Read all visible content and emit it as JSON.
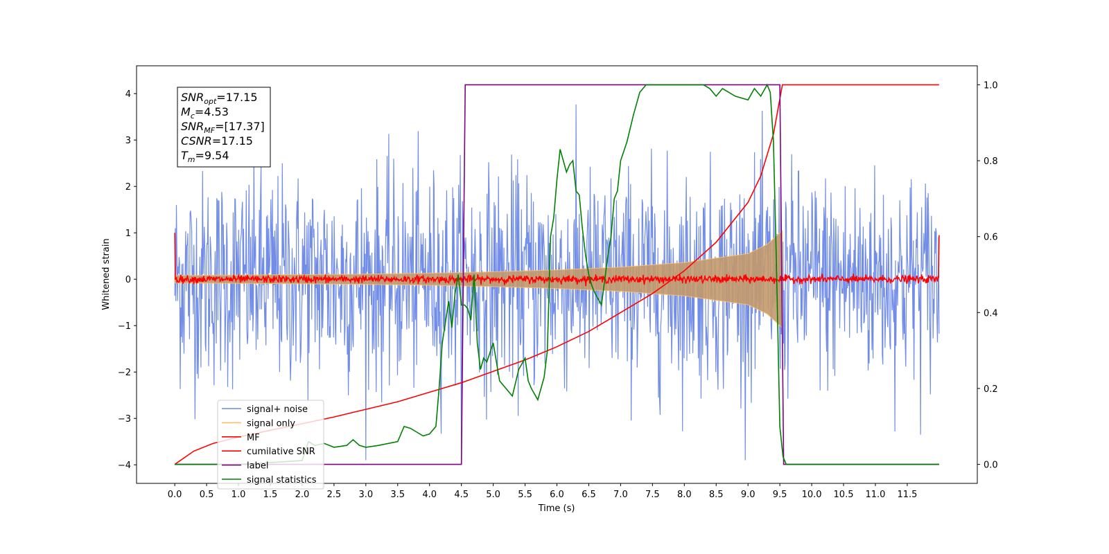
{
  "chart_data": {
    "type": "line",
    "xlabel": "Time (s)",
    "ylabel": "Whitened strain",
    "xlim": [
      -0.6,
      12.6
    ],
    "ylim": [
      -4.4,
      4.6
    ],
    "ylim_right": [
      -0.05,
      1.05
    ],
    "x_ticks": [
      "0.0",
      "0.5",
      "1.0",
      "1.5",
      "2.0",
      "2.5",
      "3.0",
      "3.5",
      "4.0",
      "4.5",
      "5.0",
      "5.5",
      "6.0",
      "6.5",
      "7.0",
      "7.5",
      "8.0",
      "8.5",
      "9.0",
      "9.5",
      "10.0",
      "10.5",
      "11.0",
      "11.5"
    ],
    "x_tick_values": [
      0,
      0.5,
      1,
      1.5,
      2,
      2.5,
      3,
      3.5,
      4,
      4.5,
      5,
      5.5,
      6,
      6.5,
      7,
      7.5,
      8,
      8.5,
      9,
      9.5,
      10,
      10.5,
      11,
      11.5
    ],
    "y_ticks": [
      "−4",
      "−3",
      "−2",
      "−1",
      "0",
      "1",
      "2",
      "3",
      "4"
    ],
    "y_tick_values": [
      -4,
      -3,
      -2,
      -1,
      0,
      1,
      2,
      3,
      4
    ],
    "y_right_ticks": [
      "0.0",
      "0.2",
      "0.4",
      "0.6",
      "0.8",
      "1.0"
    ],
    "y_right_tick_values": [
      0,
      0.2,
      0.4,
      0.6,
      0.8,
      1.0
    ],
    "grid": false,
    "legend_position": "lower-left",
    "annotation": {
      "lines": [
        {
          "base": "SNR",
          "sub": "opt",
          "rest": "=17.15"
        },
        {
          "base": "M",
          "sub": "c",
          "rest": "=4.53"
        },
        {
          "base": "SNR",
          "sub": "MF",
          "rest": "=[17.37]"
        },
        {
          "base": "CSNR",
          "sub": "",
          "rest": "=17.15"
        },
        {
          "base": "T",
          "sub": "m",
          "rest": "=9.54"
        }
      ]
    },
    "series": [
      {
        "name": "signal+ noise",
        "color": "#6a87e6",
        "axis": "left",
        "noise_std": 1.0,
        "x_range": [
          0,
          12
        ],
        "n_points": 1400
      },
      {
        "name": "signal only",
        "color": "#ffbf66",
        "axis": "left",
        "envelope": {
          "x": [
            0,
            1,
            2,
            3,
            4,
            5,
            6,
            7,
            8,
            9,
            9.3,
            9.54
          ],
          "amp": [
            0.08,
            0.09,
            0.1,
            0.11,
            0.13,
            0.16,
            0.2,
            0.26,
            0.36,
            0.55,
            0.75,
            1.05
          ]
        }
      },
      {
        "name": "MF",
        "color": "#ff0000",
        "axis": "left",
        "noise_std": 0.04,
        "x_range": [
          0,
          12
        ],
        "start_value": 1.0,
        "end_value": 0.95
      },
      {
        "name": "cumilative SNR",
        "color": "#ff0000",
        "axis": "right",
        "x": [
          0,
          0.3,
          0.6,
          1,
          1.5,
          2,
          2.5,
          3,
          3.5,
          4,
          4.5,
          5,
          5.5,
          6,
          6.5,
          7,
          7.5,
          8,
          8.5,
          9,
          9.2,
          9.4,
          9.54,
          9.55,
          12
        ],
        "y": [
          0.0,
          0.035,
          0.055,
          0.072,
          0.09,
          0.107,
          0.125,
          0.145,
          0.165,
          0.19,
          0.215,
          0.245,
          0.275,
          0.31,
          0.35,
          0.4,
          0.45,
          0.51,
          0.585,
          0.69,
          0.76,
          0.87,
          1.0,
          1.0,
          1.0
        ]
      },
      {
        "name": "label",
        "color": "#800080",
        "axis": "right",
        "x": [
          0,
          4.5,
          4.56,
          9.5,
          9.56,
          12
        ],
        "y": [
          0,
          0,
          1,
          1,
          0,
          0
        ]
      },
      {
        "name": "signal statistics",
        "color": "#008000",
        "axis": "right",
        "x": [
          0,
          0.5,
          1,
          1.5,
          2,
          2.1,
          2.2,
          2.35,
          2.5,
          2.7,
          2.8,
          2.9,
          3.0,
          3.2,
          3.5,
          3.6,
          3.7,
          3.8,
          3.9,
          4.0,
          4.1,
          4.15,
          4.2,
          4.3,
          4.35,
          4.4,
          4.45,
          4.5,
          4.55,
          4.6,
          4.65,
          4.7,
          4.75,
          4.8,
          4.85,
          4.9,
          5.0,
          5.1,
          5.2,
          5.3,
          5.4,
          5.5,
          5.55,
          5.6,
          5.7,
          5.8,
          5.85,
          5.9,
          5.95,
          6.0,
          6.05,
          6.1,
          6.15,
          6.2,
          6.25,
          6.3,
          6.35,
          6.4,
          6.45,
          6.5,
          6.55,
          6.6,
          6.7,
          6.8,
          6.85,
          6.9,
          6.95,
          7.0,
          7.1,
          7.2,
          7.3,
          7.4,
          7.5,
          7.6,
          7.7,
          8.0,
          8.2,
          8.3,
          8.4,
          8.5,
          8.6,
          8.7,
          8.8,
          9.0,
          9.1,
          9.2,
          9.3,
          9.35,
          9.4,
          9.45,
          9.5,
          9.55,
          9.6,
          9.7,
          10,
          11,
          12
        ],
        "y": [
          0,
          0,
          0,
          0.005,
          0.01,
          0.06,
          0.05,
          0.055,
          0.045,
          0.05,
          0.065,
          0.05,
          0.045,
          0.05,
          0.06,
          0.1,
          0.095,
          0.085,
          0.075,
          0.08,
          0.1,
          0.2,
          0.32,
          0.43,
          0.36,
          0.45,
          0.5,
          0.42,
          0.42,
          0.41,
          0.38,
          0.5,
          0.32,
          0.25,
          0.28,
          0.27,
          0.32,
          0.22,
          0.2,
          0.18,
          0.25,
          0.28,
          0.22,
          0.2,
          0.17,
          0.23,
          0.3,
          0.6,
          0.65,
          0.75,
          0.83,
          0.8,
          0.77,
          0.79,
          0.8,
          0.72,
          0.71,
          0.62,
          0.55,
          0.5,
          0.47,
          0.45,
          0.42,
          0.55,
          0.6,
          0.7,
          0.72,
          0.8,
          0.85,
          0.92,
          0.98,
          1.0,
          1.0,
          1.0,
          1.0,
          1.0,
          1.0,
          1.0,
          0.99,
          0.97,
          0.99,
          0.98,
          0.97,
          0.96,
          0.99,
          0.97,
          1.0,
          0.98,
          0.85,
          0.5,
          0.1,
          0.02,
          0.0,
          0.0,
          0.0,
          0.0,
          0.0
        ]
      }
    ]
  }
}
